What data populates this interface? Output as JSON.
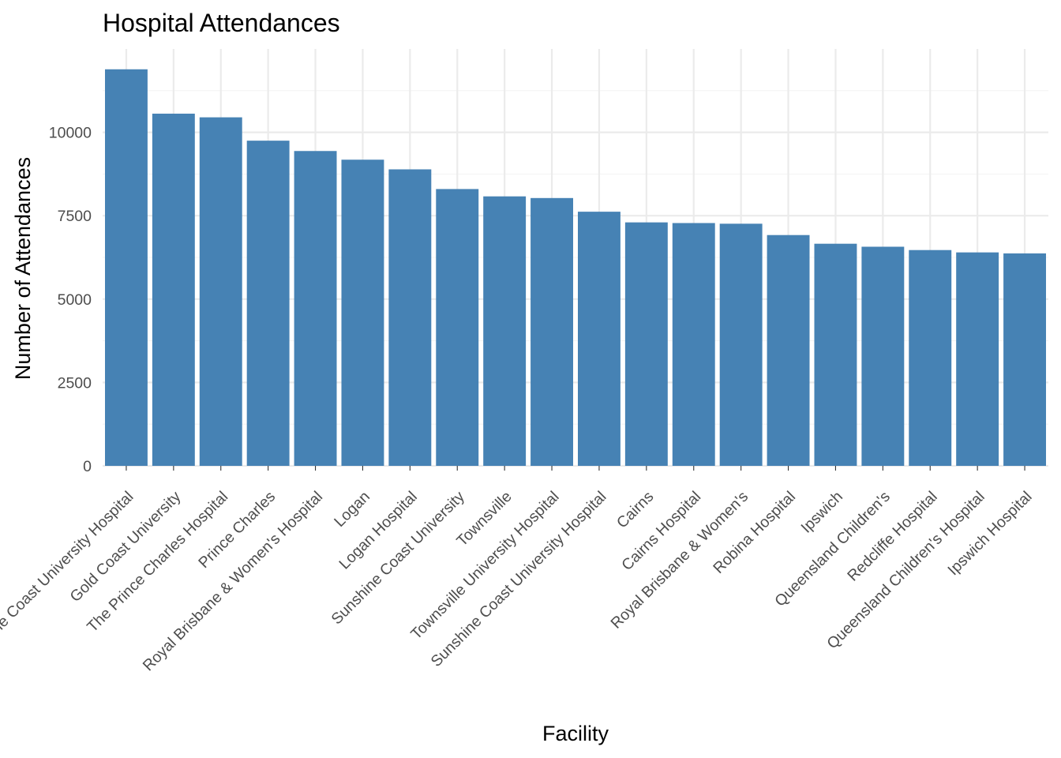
{
  "chart_data": {
    "type": "bar",
    "title": "Hospital Attendances",
    "xlabel": "Facility",
    "ylabel": "Number of Attendances",
    "categories": [
      "Sunshine Coast University Hospital",
      "Gold Coast University",
      "The Prince Charles Hospital",
      "Prince Charles",
      "Royal Brisbane & Women's Hospital",
      "Logan",
      "Logan Hospital",
      "Sunshine Coast University",
      "Townsville",
      "Townsville University Hospital",
      "Sunshine Coast University Hospital",
      "Cairns",
      "Cairns Hospital",
      "Royal Brisbane & Women's",
      "Robina Hospital",
      "Ipswich",
      "Queensland Children's",
      "Redcliffe Hospital",
      "Queensland Children's Hospital",
      "Ipswich Hospital"
    ],
    "values": [
      11890,
      10560,
      10450,
      9750,
      9440,
      9180,
      8890,
      8300,
      8080,
      8030,
      7620,
      7300,
      7280,
      7260,
      6920,
      6660,
      6570,
      6470,
      6400,
      6370
    ],
    "yticks": [
      0,
      2500,
      5000,
      7500,
      10000
    ],
    "ylim": [
      0,
      12500
    ],
    "grid": true,
    "legend": "none",
    "colors": {
      "bar": "#4682B4",
      "grid_major": "#EBEBEB",
      "grid_minor": "#F4F4F4",
      "tick_text": "#4D4D4D"
    }
  }
}
